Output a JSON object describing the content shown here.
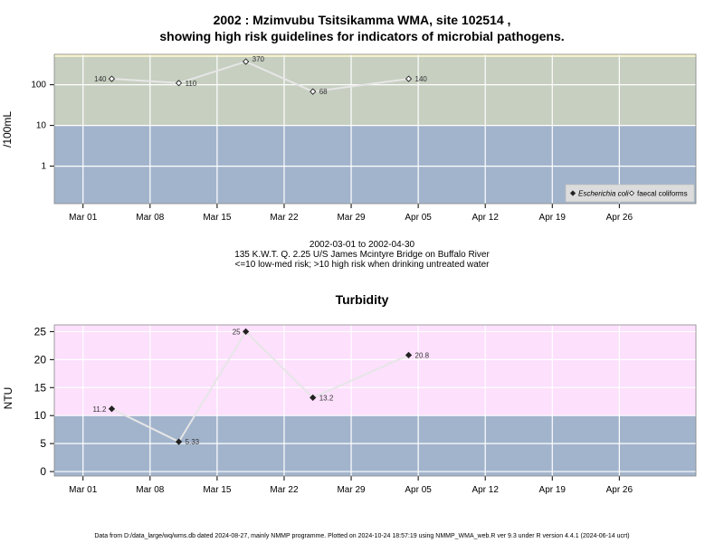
{
  "chart_data": [
    {
      "type": "line",
      "title_line1": "2002 : Mzimvubu Tsitsikamma WMA, site 102514 ,",
      "title_line2": "showing high risk guidelines for indicators of microbial pathogens.",
      "ylabel": "/100mL",
      "yscale": "log",
      "ylim": [
        0.12,
        560
      ],
      "yticks": [
        1,
        10,
        100
      ],
      "ytick_labels": [
        "1",
        "10",
        "100"
      ],
      "x_tick_labels": [
        "Mar 01",
        "Mar 08",
        "Mar 15",
        "Mar 22",
        "Mar 29",
        "Apr 05",
        "Apr 12",
        "Apr 19",
        "Apr 26"
      ],
      "x_tick_dates": [
        "2002-03-01",
        "2002-03-08",
        "2002-03-15",
        "2002-03-22",
        "2002-03-29",
        "2002-04-05",
        "2002-04-12",
        "2002-04-19",
        "2002-04-26"
      ],
      "xlim": [
        "2002-02-26",
        "2002-05-04"
      ],
      "bands": [
        {
          "from": 0.12,
          "to": 10,
          "color": "#a2b4cc"
        },
        {
          "from": 10,
          "to": 480,
          "color": "#c6cfc0"
        },
        {
          "from": 480,
          "to": 560,
          "color": "#f5f2cc"
        }
      ],
      "series": [
        {
          "name": "faecal coliforms",
          "marker": "open-diamond",
          "points": [
            {
              "x": "2002-03-04",
              "y": 140,
              "label": "140"
            },
            {
              "x": "2002-03-11",
              "y": 110,
              "label": "110"
            },
            {
              "x": "2002-03-18",
              "y": 370,
              "label": "370"
            },
            {
              "x": "2002-03-25",
              "y": 68,
              "label": "68"
            },
            {
              "x": "2002-04-04",
              "y": 140,
              "label": "140"
            }
          ]
        }
      ],
      "legend": {
        "position": "bottom-right",
        "entries": [
          {
            "name": "Escherichia coli",
            "marker": "filled-diamond",
            "italic": true
          },
          {
            "name": "faecal coliforms",
            "marker": "open-diamond",
            "italic": false
          }
        ]
      },
      "grid": true,
      "caption_line1": "2002-03-01 to 2002-04-30",
      "caption_line2": "135 K.W.T. Q. 2.25 U/S James Mcintyre Bridge on Buffalo River",
      "caption_line3": "<=10 low-med risk; >10 high risk when drinking untreated water"
    },
    {
      "type": "line",
      "title": "Turbidity",
      "ylabel": "NTU",
      "ylim": [
        -0.8,
        26.2
      ],
      "yticks": [
        0,
        5,
        10,
        15,
        20,
        25
      ],
      "ytick_labels": [
        "0",
        "5",
        "10",
        "15",
        "20",
        "25"
      ],
      "x_tick_labels": [
        "Mar 01",
        "Mar 08",
        "Mar 15",
        "Mar 22",
        "Mar 29",
        "Apr 05",
        "Apr 12",
        "Apr 19",
        "Apr 26"
      ],
      "x_tick_dates": [
        "2002-03-01",
        "2002-03-08",
        "2002-03-15",
        "2002-03-22",
        "2002-03-29",
        "2002-04-05",
        "2002-04-12",
        "2002-04-19",
        "2002-04-26"
      ],
      "xlim": [
        "2002-02-26",
        "2002-05-04"
      ],
      "bands": [
        {
          "from": -0.8,
          "to": 10,
          "color": "#a2b4cc"
        },
        {
          "from": 10,
          "to": 26.2,
          "color": "#fce0fc"
        }
      ],
      "series": [
        {
          "name": "",
          "marker": "filled-diamond",
          "points": [
            {
              "x": "2002-03-04",
              "y": 11.2,
              "label": "11.2",
              "side": "left"
            },
            {
              "x": "2002-03-11",
              "y": 5.33,
              "label": "5.33",
              "side": "right"
            },
            {
              "x": "2002-03-18",
              "y": 25,
              "label": "25",
              "side": "left"
            },
            {
              "x": "2002-03-25",
              "y": 13.2,
              "label": "13.2",
              "side": "right"
            },
            {
              "x": "2002-04-04",
              "y": 20.8,
              "label": "20.8",
              "side": "right"
            }
          ]
        }
      ],
      "grid": true
    }
  ],
  "footer": "Data from D:/data_large/wq/wms.db dated 2024-08-27, mainly NMMP programme. Plotted on 2024-10-24 18:57:19 using NMMP_WMA_web.R ver 9.3 under R version 4.4.1 (2024-06-14 ucrt)"
}
